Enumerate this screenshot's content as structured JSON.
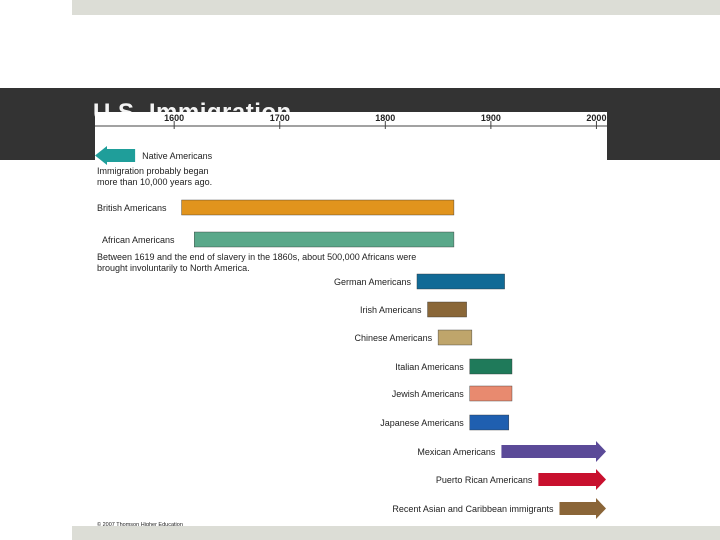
{
  "slide": {
    "title_partial": "U.S. Immigration",
    "copyright": "© 2007 Thomson Higher Education"
  },
  "chart_data": {
    "type": "timeline",
    "x_ticks": [
      1600,
      1700,
      1800,
      1900,
      2000
    ],
    "x_range": [
      1525,
      2010
    ],
    "groups": [
      {
        "name": "Native Americans",
        "start": 1525,
        "end": 1563,
        "color": "#1f9e9a",
        "arrow": "left",
        "note": [
          "Immigration probably began",
          "more than 10,000 years ago."
        ]
      },
      {
        "name": "British Americans",
        "start": 1607,
        "end": 1865,
        "color": "#e1941d"
      },
      {
        "name": "African Americans",
        "start": 1619,
        "end": 1865,
        "color": "#5aa88a",
        "note": [
          "Between 1619 and the end of slavery in the 1860s, about 500,000 Africans were",
          "brought involuntarily to North America."
        ]
      },
      {
        "name": "German Americans",
        "start": 1830,
        "end": 1913,
        "color": "#116a96"
      },
      {
        "name": "Irish Americans",
        "start": 1840,
        "end": 1877,
        "color": "#8a6738"
      },
      {
        "name": "Chinese Americans",
        "start": 1850,
        "end": 1882,
        "color": "#bfa56b"
      },
      {
        "name": "Italian Americans",
        "start": 1880,
        "end": 1920,
        "color": "#1f7a5a"
      },
      {
        "name": "Jewish Americans",
        "start": 1880,
        "end": 1920,
        "color": "#e88a6f"
      },
      {
        "name": "Japanese Americans",
        "start": 1880,
        "end": 1917,
        "color": "#1f5fb0",
        "label": "Japanese Americans"
      },
      {
        "name": "Mexican Americans",
        "start": 1910,
        "end": 2010,
        "color": "#5b4a98",
        "arrow": "right"
      },
      {
        "name": "Puerto Rican Americans",
        "start": 1945,
        "end": 2010,
        "color": "#c8102e",
        "arrow": "right"
      },
      {
        "name": "Recent Asian and Caribbean immigrants",
        "start": 1965,
        "end": 2010,
        "color": "#8a6538",
        "arrow": "right"
      }
    ]
  }
}
